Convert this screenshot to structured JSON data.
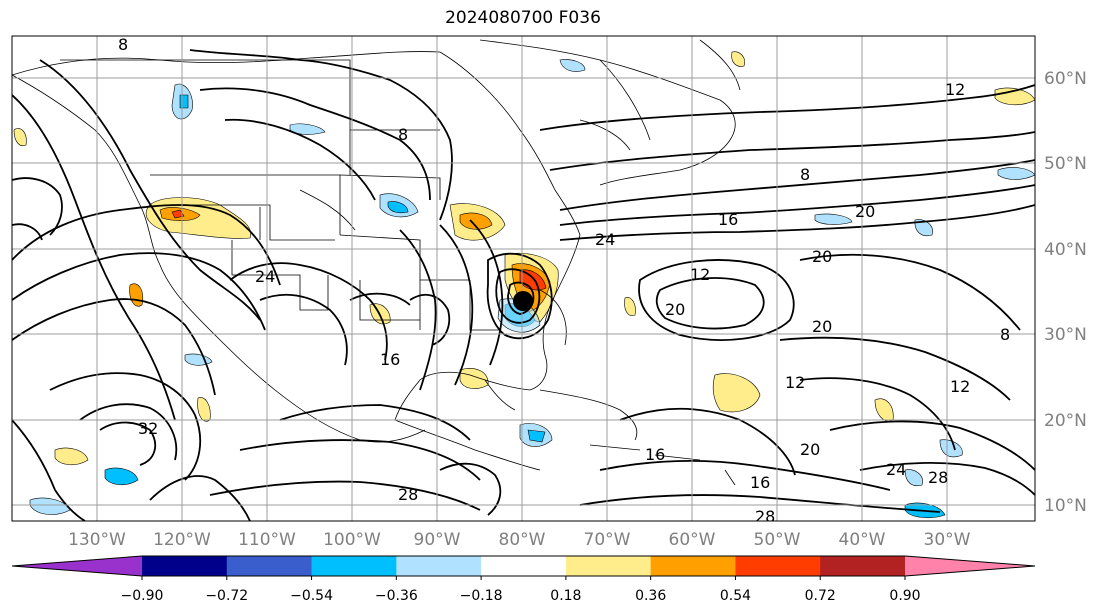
{
  "title": "2024080700 F036",
  "lat_labels": [
    "60°N",
    "50°N",
    "40°N",
    "30°N",
    "20°N",
    "10°N"
  ],
  "lon_labels": [
    "130°W",
    "120°W",
    "110°W",
    "100°W",
    "90°W",
    "80°W",
    "70°W",
    "60°W",
    "50°W",
    "40°W",
    "30°W"
  ],
  "colorbar": {
    "colors": [
      "#9932cc",
      "#00008b",
      "#3a5fcd",
      "#00bfff",
      "#b0e2ff",
      "#ffffff",
      "#ffec8b",
      "#ff9f00",
      "#ff3d00",
      "#b22222",
      "#ff82ab"
    ],
    "tick_labels": [
      "−0.90",
      "−0.72",
      "−0.54",
      "−0.36",
      "−0.18",
      "0.18",
      "0.36",
      "0.54",
      "0.72",
      "0.90"
    ]
  },
  "contour_labels": [
    "8",
    "8",
    "8",
    "8",
    "12",
    "12",
    "12",
    "12",
    "16",
    "16",
    "16",
    "16",
    "20",
    "20",
    "20",
    "20",
    "20",
    "24",
    "24",
    "24",
    "28",
    "28",
    "28",
    "32"
  ],
  "legend_icons": [
    "hurricane-center-icon"
  ]
}
